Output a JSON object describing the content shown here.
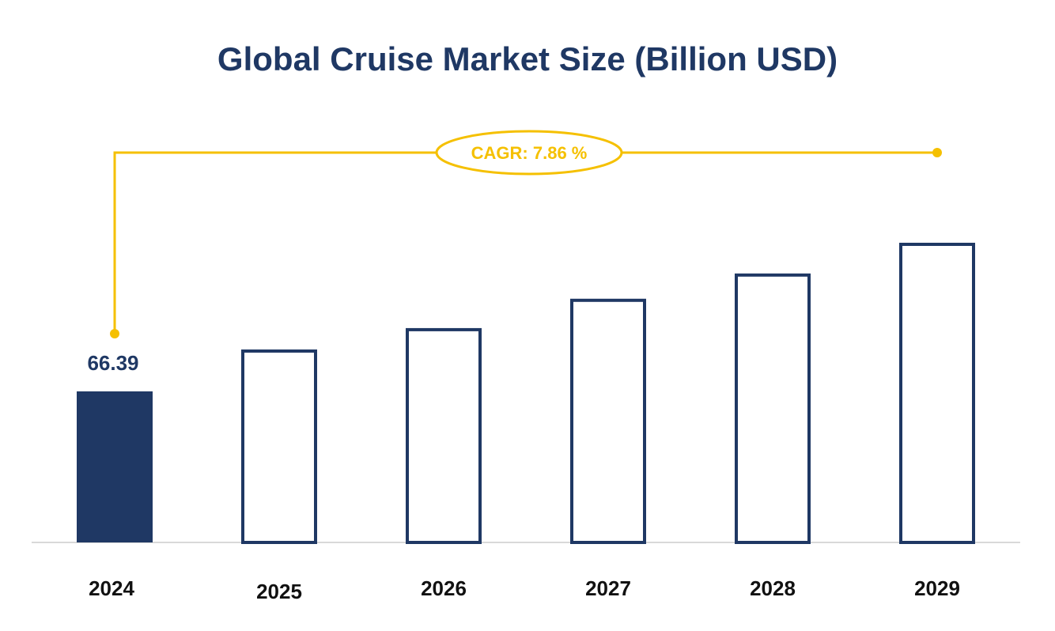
{
  "chart_data": {
    "type": "bar",
    "title": "Global Cruise Market Size (Billion USD)",
    "categories": [
      "2024",
      "2025",
      "2026",
      "2027",
      "2028",
      "2029"
    ],
    "values": [
      66.39,
      84.8,
      94.2,
      107.1,
      118.2,
      131.7
    ],
    "value_labels": [
      "66.39",
      null,
      null,
      null,
      null,
      null
    ],
    "color": "#1f3864",
    "annotation": "CAGR: 7.86 %",
    "annotation_color": "#f5c000"
  }
}
